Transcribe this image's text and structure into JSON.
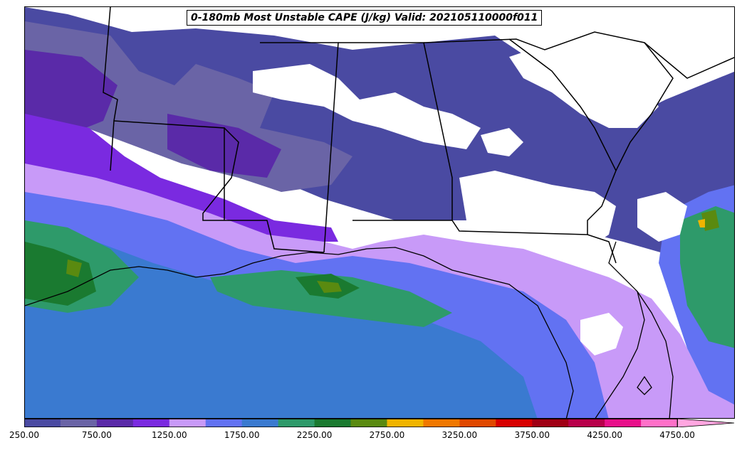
{
  "title": "0-180mb Most Unstable CAPE (J/kg) Valid: 202105110000f011",
  "colorbar": {
    "tick_labels": [
      "250.00",
      "750.00",
      "1250.00",
      "1750.00",
      "2250.00",
      "2750.00",
      "3250.00",
      "3750.00",
      "4250.00",
      "4750.00"
    ],
    "colors": [
      "#4a4aa2",
      "#6a64a6",
      "#5a2aa8",
      "#7a2ae0",
      "#c89af8",
      "#6272f2",
      "#3a7ad0",
      "#2e9a6a",
      "#1a7a30",
      "#5a8a10",
      "#f0b400",
      "#f07800",
      "#e04800",
      "#d80000",
      "#a00014",
      "#b8004a",
      "#e8108a",
      "#ff70c8"
    ]
  },
  "legend_colors": {
    "land_empty": "#ffffff",
    "border": "#000000"
  }
}
